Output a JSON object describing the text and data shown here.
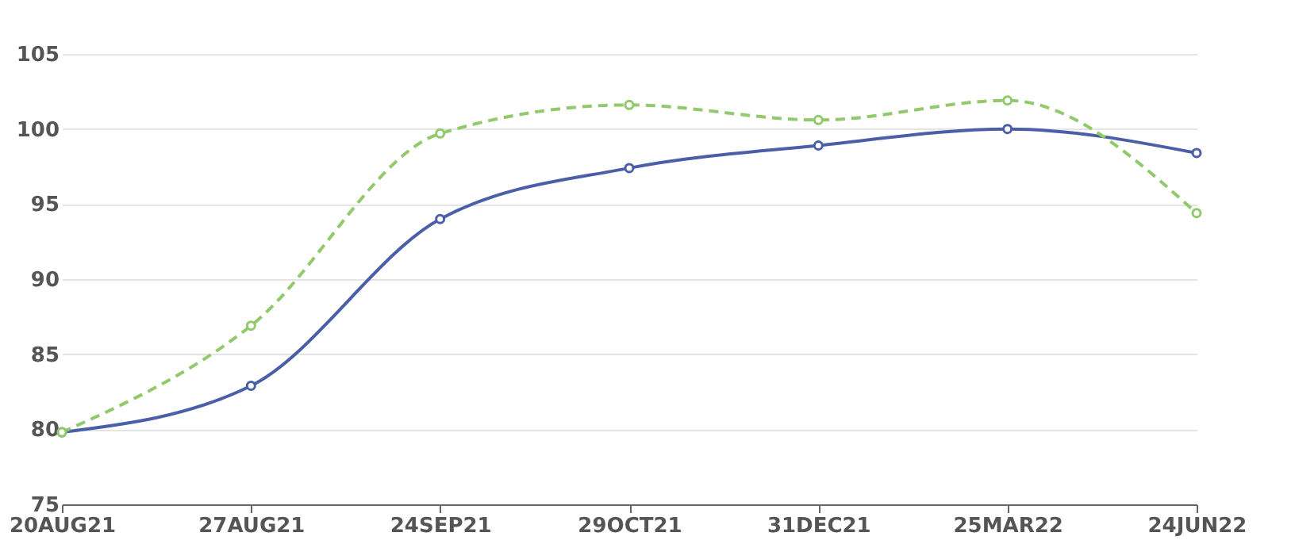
{
  "chart_data": {
    "type": "line",
    "categories": [
      "20AUG21",
      "27AUG21",
      "24SEP21",
      "29OCT21",
      "31DEC21",
      "25MAR22",
      "24JUN22"
    ],
    "series": [
      {
        "color": "#4a5fa8",
        "values": [
          79.8,
          82.9,
          94.0,
          97.4,
          98.9,
          100.0,
          98.4
        ],
        "line_style": "solid"
      },
      {
        "color": "#91c96b",
        "values": [
          79.8,
          86.9,
          99.7,
          101.6,
          100.6,
          101.9,
          94.4
        ],
        "line_style": "dashed"
      }
    ],
    "ylim": [
      75,
      105
    ],
    "yticks": [
      75,
      80,
      85,
      90,
      95,
      100,
      105
    ],
    "grid": "y",
    "marker": "circle",
    "legend": false
  }
}
